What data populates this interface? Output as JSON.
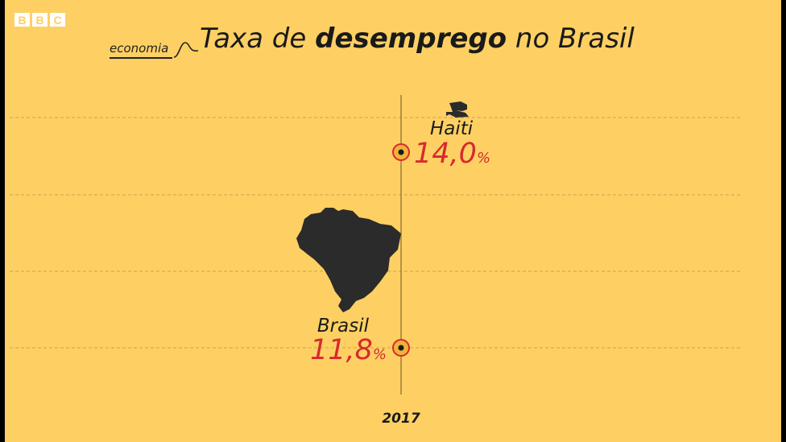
{
  "logo": {
    "letters": [
      "B",
      "B",
      "C"
    ]
  },
  "header": {
    "section": "economia",
    "title_pre": "Taxa de ",
    "title_bold": "desemprego",
    "title_post": " no Brasil"
  },
  "colors": {
    "background": "#fed063",
    "value_text": "#d8292f",
    "marker_fill": "#f0b23a",
    "marker_ring": "#d8292f",
    "ink": "#1a1a1a",
    "gridline": "#c9a24f"
  },
  "chart_data": {
    "type": "scatter",
    "title": "Taxa de desemprego no Brasil",
    "x": [
      "2017"
    ],
    "ylim": [
      11,
      14.5
    ],
    "grid": true,
    "series": [
      {
        "name": "Haiti",
        "values": [
          14.0
        ],
        "value_label": "14,0",
        "unit": "%",
        "icon": "haiti-map-icon"
      },
      {
        "name": "Brasil",
        "values": [
          11.8
        ],
        "value_label": "11,8",
        "unit": "%",
        "icon": "brazil-map-icon"
      }
    ]
  }
}
